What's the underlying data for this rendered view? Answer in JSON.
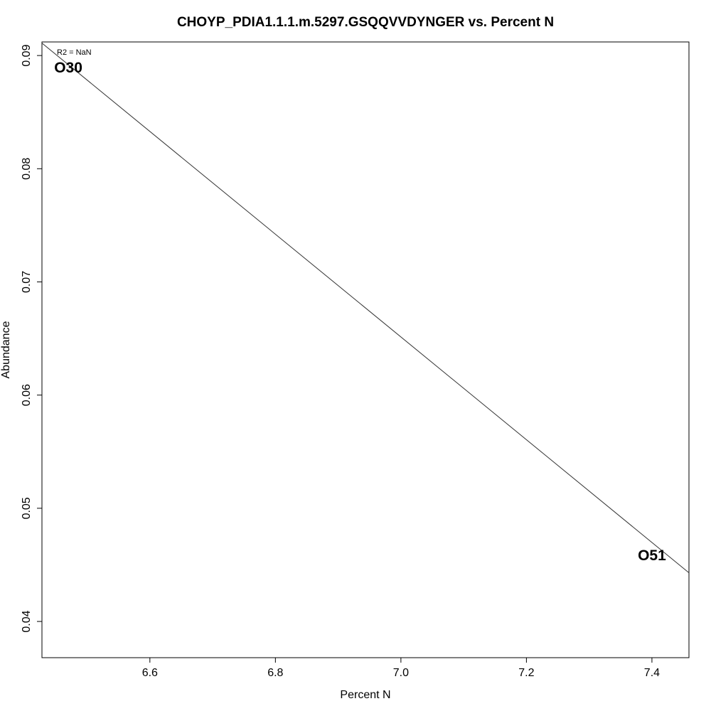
{
  "chart_data": {
    "type": "scatter",
    "title": "CHOYP_PDIA1.1.1.m.5297.GSQQVVDYNGER vs. Percent N",
    "xlabel": "Percent N",
    "ylabel": "Abundance",
    "xlim": [
      6.428,
      7.459
    ],
    "ylim": [
      0.0368,
      0.0912
    ],
    "x_ticks": [
      6.6,
      6.8,
      7.0,
      7.2,
      7.4
    ],
    "x_tick_labels": [
      "6.6",
      "6.8",
      "7.0",
      "7.2",
      "7.4"
    ],
    "y_ticks": [
      0.04,
      0.05,
      0.06,
      0.07,
      0.08,
      0.09
    ],
    "y_tick_labels": [
      "0.04",
      "0.05",
      "0.06",
      "0.07",
      "0.08",
      "0.09"
    ],
    "points": [
      {
        "label": "O30",
        "x": 6.47,
        "y": 0.0889
      },
      {
        "label": "O51",
        "x": 7.4,
        "y": 0.0458
      }
    ],
    "fit_line": {
      "x1": 6.428,
      "y1": 0.0911,
      "x2": 7.459,
      "y2": 0.0443
    },
    "annotation": "R2 = NaN",
    "grid": false,
    "legend": false
  }
}
